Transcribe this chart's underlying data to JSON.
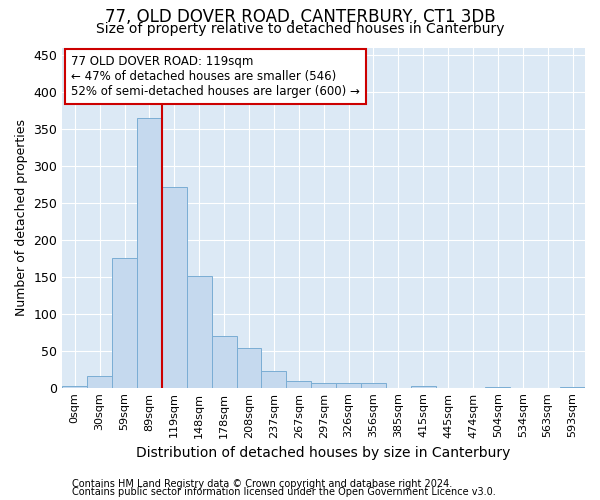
{
  "title": "77, OLD DOVER ROAD, CANTERBURY, CT1 3DB",
  "subtitle": "Size of property relative to detached houses in Canterbury",
  "xlabel": "Distribution of detached houses by size in Canterbury",
  "ylabel": "Number of detached properties",
  "footnote1": "Contains HM Land Registry data © Crown copyright and database right 2024.",
  "footnote2": "Contains public sector information licensed under the Open Government Licence v3.0.",
  "bar_labels": [
    "0sqm",
    "30sqm",
    "59sqm",
    "89sqm",
    "119sqm",
    "148sqm",
    "178sqm",
    "208sqm",
    "237sqm",
    "267sqm",
    "297sqm",
    "326sqm",
    "356sqm",
    "385sqm",
    "415sqm",
    "445sqm",
    "474sqm",
    "504sqm",
    "534sqm",
    "563sqm",
    "593sqm"
  ],
  "bar_heights": [
    2,
    16,
    176,
    365,
    272,
    151,
    70,
    53,
    22,
    9,
    6,
    6,
    6,
    0,
    2,
    0,
    0,
    1,
    0,
    0,
    1
  ],
  "bar_color": "#c5d9ee",
  "bar_edge_color": "#7aadd4",
  "red_line_x": 4,
  "red_line_color": "#cc0000",
  "annotation_line1": "77 OLD DOVER ROAD: 119sqm",
  "annotation_line2": "← 47% of detached houses are smaller (546)",
  "annotation_line3": "52% of semi-detached houses are larger (600) →",
  "annotation_box_color": "#ffffff",
  "annotation_box_edge": "#cc0000",
  "ylim": [
    0,
    460
  ],
  "background_color": "#ffffff",
  "plot_bg_color": "#dce9f5",
  "grid_color": "#ffffff",
  "title_fontsize": 12,
  "subtitle_fontsize": 10,
  "ylabel_fontsize": 9,
  "xlabel_fontsize": 10,
  "tick_fontsize": 8,
  "footnote_fontsize": 7
}
